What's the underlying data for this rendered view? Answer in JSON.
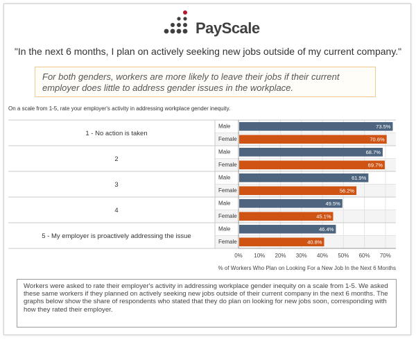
{
  "brand": {
    "name": "PayScale",
    "dot_color": "#404040",
    "accent_dot_color": "#b5192d"
  },
  "quote": "\"In the next 6 months, I plan on actively seeking new jobs outside of my current company.\"",
  "callout": "For both genders, workers are more likely to leave their jobs if their current employer does little to address gender issues in the workplace.",
  "question": "On a scale from 1-5, rate your employer's activity in addressing workplace gender inequity.",
  "footer_note": "Workers were asked to rate their employer's activity in addressing workplace gender inequity on a scale from 1-5. We asked these same workers if they planned on actively seeking new jobs outside of their current company in the next 6 months. The graphs below show the share of respondents who stated that they do plan on looking for new jobs soon, corresponding with how they rated their employer.",
  "chart_data": {
    "type": "bar",
    "orientation": "horizontal",
    "categories": [
      "1 - No action is taken",
      "2",
      "3",
      "4",
      "5 - My employer is proactively addressing the issue"
    ],
    "series": [
      {
        "name": "Male",
        "values": [
          73.5,
          68.7,
          61.9,
          49.5,
          46.4
        ],
        "labels": [
          "73.5%",
          "68.7%",
          "61.9%",
          "49.5%",
          "46.4%"
        ],
        "color": "#4e6580"
      },
      {
        "name": "Female",
        "values": [
          70.6,
          69.7,
          56.2,
          45.1,
          40.8
        ],
        "labels": [
          "70.6%",
          "69.7%",
          "56.2%",
          "45.1%",
          "40.8%"
        ],
        "color": "#cf5414"
      }
    ],
    "xlim": [
      0,
      75
    ],
    "xticks": [
      0,
      10,
      20,
      30,
      40,
      50,
      60,
      70
    ],
    "xtick_labels": [
      "0%",
      "10%",
      "20%",
      "30%",
      "40%",
      "50%",
      "60%",
      "70%"
    ],
    "xlabel": "% of Workers Who Plan on Looking For a New Job In the Next 6 Months",
    "grid": true
  }
}
